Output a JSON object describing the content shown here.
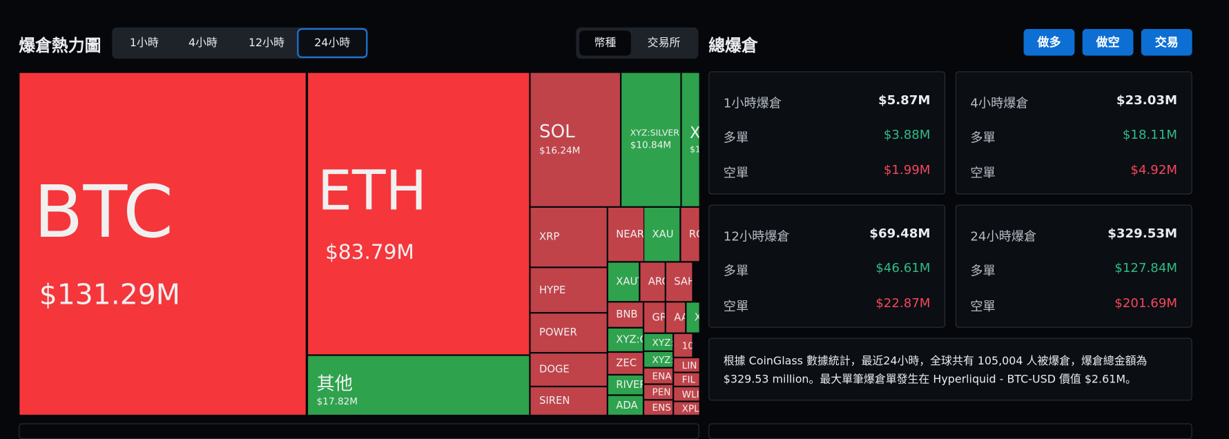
{
  "header": {
    "title": "爆倉熱力圖",
    "time_tabs": [
      "1小時",
      "4小時",
      "12小時",
      "24小時"
    ],
    "group_tabs": [
      "幣種",
      "交易所"
    ]
  },
  "heatmap": {
    "tiles": [
      {
        "label": "BTC",
        "value": "$131.29M"
      },
      {
        "label": "ETH",
        "value": "$83.79M"
      },
      {
        "label": "其他",
        "value": "$17.82M"
      },
      {
        "label": "SOL",
        "value": "$16.24M"
      },
      {
        "label": "XYZ:SILVER",
        "value": "$10.84M"
      },
      {
        "label": "X",
        "value": "$1"
      },
      {
        "label": "XRP"
      },
      {
        "label": "HYPE"
      },
      {
        "label": "POWER"
      },
      {
        "label": "DOGE"
      },
      {
        "label": "SIREN"
      },
      {
        "label": "NEAR"
      },
      {
        "label": "XAU"
      },
      {
        "label": "RO"
      },
      {
        "label": "XAUT"
      },
      {
        "label": "ARC"
      },
      {
        "label": "SAH"
      },
      {
        "label": "BNB"
      },
      {
        "label": "GR"
      },
      {
        "label": "AA"
      },
      {
        "label": "X"
      },
      {
        "label": "XYZ:G"
      },
      {
        "label": "XYZ:"
      },
      {
        "label": "10"
      },
      {
        "label": "ZEC"
      },
      {
        "label": "XYZ:"
      },
      {
        "label": "LIN"
      },
      {
        "label": "ENA"
      },
      {
        "label": "RIVER"
      },
      {
        "label": "FIL"
      },
      {
        "label": "PEN"
      },
      {
        "label": "WLI"
      },
      {
        "label": "ADA"
      },
      {
        "label": "ENS"
      },
      {
        "label": "XPL"
      }
    ]
  },
  "summary": {
    "title": "總爆倉",
    "buttons": [
      "做多",
      "做空",
      "交易"
    ],
    "cards": [
      {
        "title": "1小時爆倉",
        "total": "$5.87M",
        "long_label": "多單",
        "long": "$3.88M",
        "short_label": "空單",
        "short": "$1.99M"
      },
      {
        "title": "4小時爆倉",
        "total": "$23.03M",
        "long_label": "多單",
        "long": "$18.11M",
        "short_label": "空單",
        "short": "$4.92M"
      },
      {
        "title": "12小時爆倉",
        "total": "$69.48M",
        "long_label": "多單",
        "long": "$46.61M",
        "short_label": "空單",
        "short": "$22.87M"
      },
      {
        "title": "24小時爆倉",
        "total": "$329.53M",
        "long_label": "多單",
        "long": "$127.84M",
        "short_label": "空單",
        "short": "$201.69M"
      }
    ],
    "note": "根據 CoinGlass 數據統計，最近24小時，全球共有 105,004 人被爆倉，爆倉總金額為 $329.53 million。最大單筆爆倉單發生在 Hyperliquid - BTC-USD 價值 $2.61M。"
  }
}
